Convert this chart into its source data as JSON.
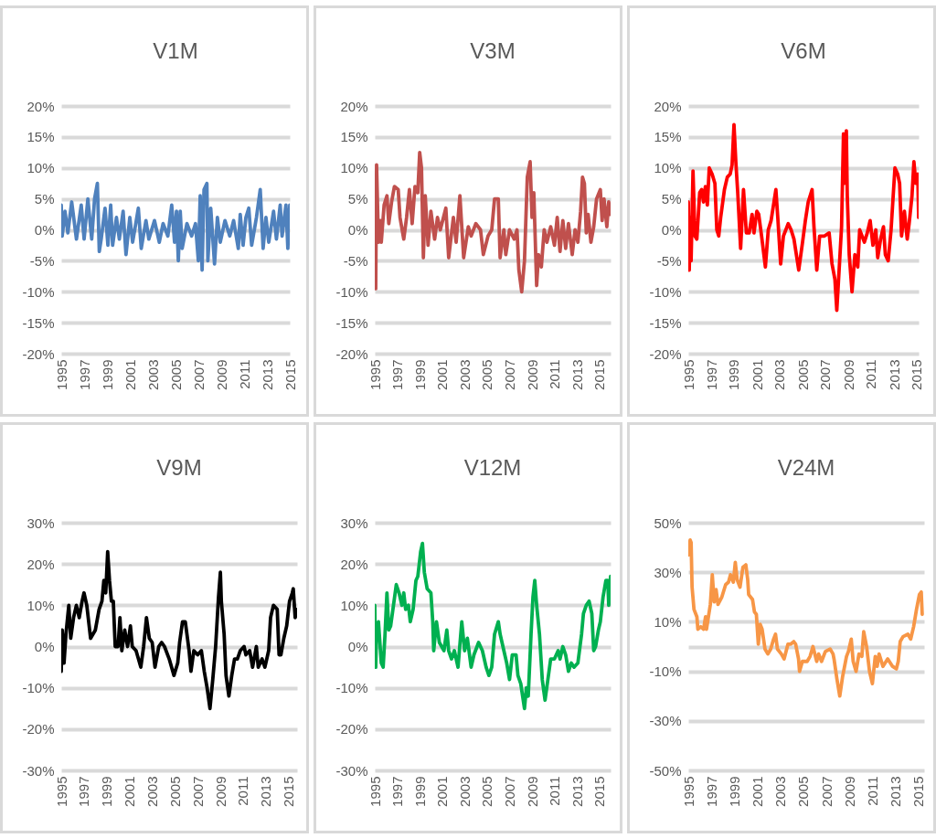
{
  "chart_data": [
    {
      "type": "line",
      "title": "V1M",
      "grid": "y",
      "xlim": [
        "1995-01",
        "2015-01"
      ],
      "xticks": [
        "1995",
        "1997",
        "1999",
        "2001",
        "2003",
        "2005",
        "2007",
        "2009",
        "2011",
        "2013",
        "2015"
      ],
      "ylim": [
        -20,
        20
      ],
      "yticks": [
        {
          "value": -20,
          "label": "-20%"
        },
        {
          "value": -15,
          "label": "-15%"
        },
        {
          "value": -10,
          "label": "-10%"
        },
        {
          "value": -5,
          "label": "-5%"
        },
        {
          "value": 0,
          "label": "0%"
        },
        {
          "value": 5,
          "label": "5%"
        },
        {
          "value": 10,
          "label": "10%"
        },
        {
          "value": 15,
          "label": "15%"
        },
        {
          "value": 20,
          "label": "20%"
        }
      ],
      "x": [
        "1995-01",
        "1995-02",
        "1995-05",
        "1995-08",
        "1995-12",
        "1996-05",
        "1996-10",
        "1997-01",
        "1997-05",
        "1997-09",
        "1997-12",
        "1998-03",
        "1998-05",
        "1998-07",
        "1998-11",
        "1999-02",
        "1999-05",
        "1999-07",
        "1999-11",
        "2000-02",
        "2000-06",
        "2000-09",
        "2001-01",
        "2001-04",
        "2001-10",
        "2002-01",
        "2002-06",
        "2002-09",
        "2003-03",
        "2003-08",
        "2003-12",
        "2004-05",
        "2004-09",
        "2004-12",
        "2005-02",
        "2005-04",
        "2005-06",
        "2005-08",
        "2006-01",
        "2006-06",
        "2006-10",
        "2007-01",
        "2007-03",
        "2007-05",
        "2007-07",
        "2007-10",
        "2007-11",
        "2008-02",
        "2008-06",
        "2008-09",
        "2008-12",
        "2009-05",
        "2009-10",
        "2010-02",
        "2010-07",
        "2010-09",
        "2010-12",
        "2011-03",
        "2011-06",
        "2011-09",
        "2012-02",
        "2012-06",
        "2012-09",
        "2012-12",
        "2013-03",
        "2013-08",
        "2013-11",
        "2014-03",
        "2014-05",
        "2014-09",
        "2014-11",
        "2015-01"
      ],
      "series": [
        {
          "color": "#4f81bd",
          "values": [
            4,
            -1,
            3,
            -0.5,
            4.5,
            -1.5,
            4,
            -1.5,
            5,
            -1.5,
            5,
            7.5,
            -3.5,
            -1.5,
            3.5,
            -2.5,
            4,
            -2.5,
            2,
            -1.5,
            3,
            -4,
            2,
            -2,
            3.5,
            -3,
            1.5,
            -1.5,
            1.5,
            -2,
            1,
            -1,
            4,
            -2,
            3,
            -5,
            3,
            -3,
            1,
            -1,
            1,
            -5,
            5.5,
            -6.5,
            6.5,
            7.5,
            -5,
            3.5,
            -5.5,
            2,
            -2,
            1.5,
            -1,
            1.5,
            -3,
            2.5,
            -2.5,
            2,
            3.5,
            -2.5,
            2,
            6.5,
            -3,
            2,
            -2,
            3,
            -1.5,
            4,
            -1,
            4,
            -3,
            4
          ]
        }
      ]
    },
    {
      "type": "line",
      "title": "V3M",
      "grid": "y",
      "xlim": [
        "1995-01",
        "2016-01"
      ],
      "xticks": [
        "1995",
        "1997",
        "1999",
        "2001",
        "2003",
        "2005",
        "2007",
        "2009",
        "2011",
        "2013",
        "2015"
      ],
      "ylim": [
        -20,
        20
      ],
      "yticks": [
        {
          "value": -20,
          "label": "-20%"
        },
        {
          "value": -15,
          "label": "-15%"
        },
        {
          "value": -10,
          "label": "-10%"
        },
        {
          "value": -5,
          "label": "-5%"
        },
        {
          "value": 0,
          "label": "0%"
        },
        {
          "value": 5,
          "label": "5%"
        },
        {
          "value": 10,
          "label": "10%"
        },
        {
          "value": 15,
          "label": "15%"
        },
        {
          "value": 20,
          "label": "20%"
        }
      ],
      "x": [
        "1995-01",
        "1995-02",
        "1995-03",
        "1995-05",
        "1995-07",
        "1995-08",
        "1995-11",
        "1996-02",
        "1996-04",
        "1996-07",
        "1996-10",
        "1997-02",
        "1997-04",
        "1997-08",
        "1997-11",
        "1998-02",
        "1998-05",
        "1998-08",
        "1998-11",
        "1999-01",
        "1999-03",
        "1999-05",
        "1999-07",
        "1999-10",
        "2000-01",
        "2000-05",
        "2000-08",
        "2000-11",
        "2001-05",
        "2001-08",
        "2002-01",
        "2002-04",
        "2002-08",
        "2002-12",
        "2003-05",
        "2003-08",
        "2004-01",
        "2004-06",
        "2004-09",
        "2005-02",
        "2005-06",
        "2005-09",
        "2006-01",
        "2006-03",
        "2006-07",
        "2006-09",
        "2007-01",
        "2007-06",
        "2007-09",
        "2007-11",
        "2008-02",
        "2008-05",
        "2008-08",
        "2008-11",
        "2009-01",
        "2009-03",
        "2009-06",
        "2009-08",
        "2009-11",
        "2010-02",
        "2010-05",
        "2010-09",
        "2011-01",
        "2011-04",
        "2011-07",
        "2011-10",
        "2012-01",
        "2012-04",
        "2012-08",
        "2012-11",
        "2013-02",
        "2013-05",
        "2013-07",
        "2013-09",
        "2013-11",
        "2014-01",
        "2014-04",
        "2014-07",
        "2014-10",
        "2015-02",
        "2015-04",
        "2015-06",
        "2015-09",
        "2015-11",
        "2016-01"
      ],
      "series": [
        {
          "color": "#c0504d",
          "values": [
            3,
            -9.5,
            10.5,
            -2,
            1.5,
            -2,
            4,
            5.5,
            1,
            4.5,
            7,
            6.5,
            2,
            -1.5,
            2,
            6.5,
            1,
            7,
            6,
            12.5,
            10,
            -4.5,
            5.5,
            -2.5,
            3,
            -1.5,
            2,
            0,
            3.5,
            -4.5,
            2,
            -2,
            5.5,
            -4.5,
            0.5,
            -1,
            1,
            0,
            -4,
            -1,
            0,
            5,
            5,
            -4.5,
            0,
            -4,
            0,
            -1.5,
            0,
            -6.5,
            -10,
            -5,
            8.5,
            11,
            2,
            6,
            -9,
            -4,
            -6,
            0,
            -2,
            0.5,
            -2.5,
            2,
            -3.5,
            1.5,
            -3,
            1,
            -4,
            0,
            -2,
            3,
            8.5,
            7.5,
            -0.5,
            2.5,
            -2,
            0.5,
            5,
            6.5,
            1.5,
            5,
            0.5,
            4.5,
            2.5
          ]
        }
      ]
    },
    {
      "type": "line",
      "title": "V6M",
      "grid": "y",
      "xlim": [
        "1995-01",
        "2015-03"
      ],
      "xticks": [
        "1995",
        "1997",
        "1999",
        "2001",
        "2003",
        "2005",
        "2007",
        "2009",
        "2011",
        "2013",
        "2015"
      ],
      "ylim": [
        -20,
        20
      ],
      "yticks": [
        {
          "value": -20,
          "label": "-20%"
        },
        {
          "value": -15,
          "label": "-15%"
        },
        {
          "value": -10,
          "label": "-10%"
        },
        {
          "value": -5,
          "label": "-5%"
        },
        {
          "value": 0,
          "label": "0%"
        },
        {
          "value": 5,
          "label": "5%"
        },
        {
          "value": 10,
          "label": "10%"
        },
        {
          "value": 15,
          "label": "15%"
        },
        {
          "value": 20,
          "label": "20%"
        }
      ],
      "x": [
        "1995-01",
        "1995-02",
        "1995-03",
        "1995-04",
        "1995-06",
        "1995-08",
        "1995-10",
        "1996-01",
        "1996-03",
        "1996-05",
        "1996-07",
        "1996-09",
        "1996-11",
        "1997-02",
        "1997-05",
        "1997-07",
        "1997-09",
        "1997-11",
        "1998-03",
        "1998-06",
        "1998-09",
        "1998-11",
        "1999-01",
        "1999-03",
        "1999-05",
        "1999-08",
        "1999-11",
        "2000-02",
        "2000-05",
        "2000-08",
        "2000-10",
        "2001-01",
        "2001-03",
        "2001-06",
        "2001-10",
        "2002-01",
        "2002-04",
        "2002-09",
        "2002-11",
        "2003-02",
        "2003-05",
        "2003-10",
        "2004-01",
        "2004-04",
        "2004-09",
        "2005-01",
        "2005-04",
        "2005-07",
        "2005-11",
        "2006-01",
        "2006-04",
        "2006-07",
        "2006-12",
        "2007-05",
        "2007-08",
        "2007-11",
        "2008-01",
        "2008-04",
        "2008-06",
        "2008-08",
        "2008-09",
        "2008-11",
        "2008-12",
        "2009-02",
        "2009-05",
        "2009-08",
        "2009-11",
        "2010-01",
        "2010-06",
        "2010-09",
        "2010-12",
        "2011-03",
        "2011-06",
        "2011-08",
        "2011-11",
        "2012-02",
        "2012-04",
        "2012-07",
        "2012-10",
        "2013-02",
        "2013-05",
        "2013-07",
        "2013-09",
        "2013-12",
        "2014-03",
        "2014-05",
        "2014-08",
        "2014-10",
        "2014-12",
        "2015-02",
        "2015-03"
      ],
      "series": [
        {
          "color": "#ff0000",
          "values": [
            4.5,
            -6.5,
            2,
            -5,
            9.5,
            -1,
            -1.5,
            6,
            6.5,
            4.5,
            7,
            4,
            10,
            9,
            7.5,
            0,
            -1,
            2,
            6.5,
            8.5,
            9,
            10.5,
            17,
            11,
            6,
            -3,
            6.5,
            -0.5,
            -0.5,
            2.5,
            -0.5,
            3,
            2.5,
            -1,
            -6,
            0,
            1.5,
            6.5,
            2,
            -5.5,
            -1,
            1,
            0,
            -1.5,
            -6.5,
            -2,
            1.5,
            4.5,
            6.5,
            0.5,
            -6.5,
            -1,
            -1,
            -0.5,
            -5.5,
            -8,
            -13,
            -5,
            0.5,
            15.5,
            7.5,
            16,
            5.5,
            -4,
            -10,
            -4,
            -6,
            0,
            -2,
            -0.5,
            1.5,
            -2.5,
            0,
            -4.5,
            -1.5,
            0.5,
            -4,
            -5,
            0,
            10,
            9,
            7.5,
            -1,
            3,
            -1.5,
            1,
            5.5,
            11,
            7.5,
            9,
            2
          ]
        }
      ]
    },
    {
      "type": "line",
      "title": "V9M",
      "grid": "y",
      "xlim": [
        "1995-01",
        "2015-10"
      ],
      "xticks": [
        "1995",
        "1997",
        "1999",
        "2001",
        "2003",
        "2005",
        "2007",
        "2009",
        "2011",
        "2013",
        "2015"
      ],
      "ylim": [
        -30,
        30
      ],
      "yticks": [
        {
          "value": -30,
          "label": "-30%"
        },
        {
          "value": -20,
          "label": "-20%"
        },
        {
          "value": -10,
          "label": "-10%"
        },
        {
          "value": 0,
          "label": "0%"
        },
        {
          "value": 10,
          "label": "10%"
        },
        {
          "value": 20,
          "label": "20%"
        },
        {
          "value": 30,
          "label": "30%"
        }
      ],
      "x": [
        "1995-01",
        "1995-02",
        "1995-04",
        "1995-06",
        "1995-09",
        "1995-11",
        "1996-02",
        "1996-05",
        "1996-08",
        "1996-11",
        "1997-01",
        "1997-04",
        "1997-08",
        "1998-01",
        "1998-05",
        "1998-08",
        "1998-10",
        "1998-12",
        "1999-02",
        "1999-04",
        "1999-06",
        "1999-08",
        "1999-10",
        "2000-01",
        "2000-03",
        "2000-05",
        "2000-08",
        "2000-11",
        "2001-02",
        "2001-04",
        "2001-08",
        "2002-01",
        "2002-04",
        "2002-07",
        "2002-10",
        "2003-01",
        "2003-04",
        "2003-08",
        "2003-11",
        "2004-02",
        "2004-07",
        "2004-12",
        "2005-04",
        "2005-06",
        "2005-09",
        "2005-12",
        "2006-04",
        "2006-06",
        "2006-09",
        "2007-01",
        "2007-05",
        "2007-08",
        "2007-11",
        "2008-02",
        "2008-05",
        "2008-08",
        "2008-11",
        "2009-01",
        "2009-02",
        "2009-05",
        "2009-07",
        "2009-10",
        "2010-01",
        "2010-04",
        "2010-07",
        "2010-10",
        "2011-02",
        "2011-04",
        "2011-08",
        "2011-11",
        "2012-03",
        "2012-05",
        "2012-09",
        "2012-12",
        "2013-04",
        "2013-06",
        "2013-09",
        "2014-01",
        "2014-03",
        "2014-05",
        "2014-08",
        "2014-11",
        "2015-02",
        "2015-05",
        "2015-06",
        "2015-08",
        "2015-10"
      ],
      "series": [
        {
          "color": "#000000",
          "values": [
            -6,
            4,
            -4,
            3,
            10,
            2,
            7,
            10,
            7,
            11,
            13,
            10,
            2,
            4,
            9,
            11,
            16,
            13,
            23,
            16,
            11,
            11,
            0,
            0,
            7,
            -1,
            4,
            0,
            5,
            0,
            -1,
            -5,
            0,
            7,
            2,
            1,
            -5,
            0,
            1,
            0,
            -3,
            -7,
            -4,
            1,
            6,
            6,
            -1,
            -6,
            -1,
            -2,
            -1,
            -6,
            -10,
            -15,
            -8,
            0,
            12,
            18,
            11,
            3,
            -7,
            -12,
            -7,
            -3,
            -3,
            -1,
            0,
            -2,
            -1,
            -5,
            0,
            -5,
            -3,
            -5,
            -1,
            7,
            10,
            9,
            -2,
            -2,
            2,
            5,
            11,
            13,
            14,
            7,
            9
          ]
        }
      ]
    },
    {
      "type": "line",
      "title": "V12M",
      "grid": "y",
      "xlim": [
        "1995-01",
        "2016-01"
      ],
      "xticks": [
        "1995",
        "1997",
        "1999",
        "2001",
        "2003",
        "2005",
        "2007",
        "2009",
        "2011",
        "2013",
        "2015"
      ],
      "ylim": [
        -30,
        30
      ],
      "yticks": [
        {
          "value": -30,
          "label": "-30%"
        },
        {
          "value": -20,
          "label": "-20%"
        },
        {
          "value": -10,
          "label": "-10%"
        },
        {
          "value": 0,
          "label": "0%"
        },
        {
          "value": 10,
          "label": "10%"
        },
        {
          "value": 20,
          "label": "20%"
        },
        {
          "value": 30,
          "label": "30%"
        }
      ],
      "x": [
        "1995-01",
        "1995-02",
        "1995-03",
        "1995-05",
        "1995-08",
        "1995-10",
        "1995-12",
        "1996-02",
        "1996-04",
        "1996-06",
        "1996-09",
        "1996-12",
        "1997-03",
        "1997-06",
        "1997-08",
        "1997-10",
        "1998-01",
        "1998-03",
        "1998-06",
        "1998-09",
        "1998-11",
        "1999-02",
        "1999-04",
        "1999-06",
        "1999-09",
        "2000-01",
        "2000-03",
        "2000-04",
        "2000-07",
        "2000-10",
        "2001-03",
        "2001-06",
        "2001-08",
        "2001-11",
        "2002-02",
        "2002-06",
        "2002-10",
        "2003-01",
        "2003-04",
        "2003-08",
        "2003-11",
        "2004-04",
        "2004-08",
        "2004-12",
        "2005-03",
        "2005-06",
        "2005-09",
        "2006-01",
        "2006-03",
        "2006-07",
        "2006-10",
        "2007-01",
        "2007-04",
        "2007-08",
        "2007-10",
        "2008-01",
        "2008-05",
        "2008-07",
        "2008-09",
        "2008-12",
        "2009-02",
        "2009-04",
        "2009-06",
        "2009-09",
        "2009-12",
        "2010-03",
        "2010-06",
        "2010-09",
        "2011-01",
        "2011-05",
        "2011-07",
        "2011-10",
        "2012-01",
        "2012-04",
        "2012-07",
        "2012-10",
        "2013-02",
        "2013-06",
        "2013-08",
        "2013-11",
        "2014-02",
        "2014-05",
        "2014-07",
        "2014-09",
        "2014-12",
        "2015-02",
        "2015-05",
        "2015-08",
        "2015-10",
        "2015-11",
        "2016-01"
      ],
      "series": [
        {
          "color": "#00b050",
          "values": [
            10,
            -5,
            4,
            6,
            -4,
            -5,
            3,
            13,
            4,
            5,
            10,
            15,
            13,
            10,
            13,
            9,
            10,
            6,
            9,
            16,
            17,
            23,
            25,
            18,
            14,
            13,
            6,
            -1,
            6,
            1,
            -1,
            4,
            -1,
            -3,
            -1,
            -5,
            6,
            -1,
            2,
            -5,
            -2,
            1,
            -1,
            -5,
            -7,
            -5,
            3,
            6,
            3,
            -1,
            -4,
            -8,
            -2,
            -2,
            -7,
            -9,
            -15,
            -10,
            -12,
            3,
            12,
            16,
            10,
            3,
            -8,
            -13,
            -8,
            -3,
            -3,
            -1,
            -3,
            0,
            -2,
            -6,
            -4,
            -5,
            -4,
            3,
            8,
            10,
            11,
            8,
            -1,
            0,
            4,
            6,
            12,
            16,
            16,
            10,
            17
          ]
        }
      ]
    },
    {
      "type": "line",
      "title": "V24M",
      "grid": "y",
      "xlim": [
        "1995-01",
        "2015-07"
      ],
      "xticks": [
        "1995",
        "1997",
        "1999",
        "2001",
        "2003",
        "2005",
        "2007",
        "2009",
        "2011",
        "2013",
        "2015"
      ],
      "ylim": [
        -50,
        50
      ],
      "yticks": [
        {
          "value": -50,
          "label": "-50%"
        },
        {
          "value": -30,
          "label": "-30%"
        },
        {
          "value": -10,
          "label": "-10%"
        },
        {
          "value": 0,
          "label": null
        },
        {
          "value": 10,
          "label": "10%"
        },
        {
          "value": 30,
          "label": "30%"
        },
        {
          "value": 50,
          "label": "50%"
        }
      ],
      "x": [
        "1995-01",
        "1995-03",
        "1995-04",
        "1995-05",
        "1995-07",
        "1995-10",
        "1995-11",
        "1996-02",
        "1996-05",
        "1996-07",
        "1996-08",
        "1996-12",
        "1997-02",
        "1997-04",
        "1997-06",
        "1997-08",
        "1997-12",
        "1998-04",
        "1998-07",
        "1998-09",
        "1998-12",
        "1999-02",
        "1999-04",
        "1999-07",
        "1999-10",
        "2000-01",
        "2000-03",
        "2000-04",
        "2000-08",
        "2000-10",
        "2000-12",
        "2001-02",
        "2001-04",
        "2001-06",
        "2001-09",
        "2001-12",
        "2002-03",
        "2002-06",
        "2002-08",
        "2002-10",
        "2003-02",
        "2003-05",
        "2003-09",
        "2003-12",
        "2004-03",
        "2004-05",
        "2004-08",
        "2004-09",
        "2004-12",
        "2005-05",
        "2005-08",
        "2005-11",
        "2006-03",
        "2006-05",
        "2006-08",
        "2006-12",
        "2007-05",
        "2007-08",
        "2007-09",
        "2007-12",
        "2008-03",
        "2008-06",
        "2008-10",
        "2008-12",
        "2009-03",
        "2009-05",
        "2009-08",
        "2009-11",
        "2010-02",
        "2010-04",
        "2010-07",
        "2010-10",
        "2011-01",
        "2011-04",
        "2011-06",
        "2011-08",
        "2011-12",
        "2012-05",
        "2012-10",
        "2013-02",
        "2013-04",
        "2013-06",
        "2013-09",
        "2014-02",
        "2014-05",
        "2014-08",
        "2014-11",
        "2015-02",
        "2015-04",
        "2015-05"
      ],
      "series": [
        {
          "color": "#f79646",
          "values": [
            37,
            43,
            42,
            24,
            15,
            12,
            7,
            8,
            7,
            12,
            7,
            17,
            29,
            18,
            23,
            17,
            20,
            25,
            26,
            29,
            26,
            34,
            27,
            24,
            32,
            33,
            27,
            21,
            19,
            14,
            13,
            1,
            9,
            7,
            -1,
            -3,
            -1,
            3,
            5,
            -1,
            -3,
            -5,
            1,
            1,
            2,
            1,
            -5,
            -10,
            -6,
            -6,
            -4,
            0,
            -6,
            -3,
            -6,
            -2,
            -1,
            -3,
            -5,
            -13,
            -20,
            -12,
            -4,
            -2,
            3,
            -6,
            -10,
            -3,
            -4,
            6,
            0,
            -10,
            -15,
            -4,
            -8,
            -3,
            -8,
            -5,
            -8,
            -9,
            -6,
            2,
            4,
            5,
            3,
            8,
            15,
            21,
            22,
            13
          ]
        }
      ]
    }
  ]
}
